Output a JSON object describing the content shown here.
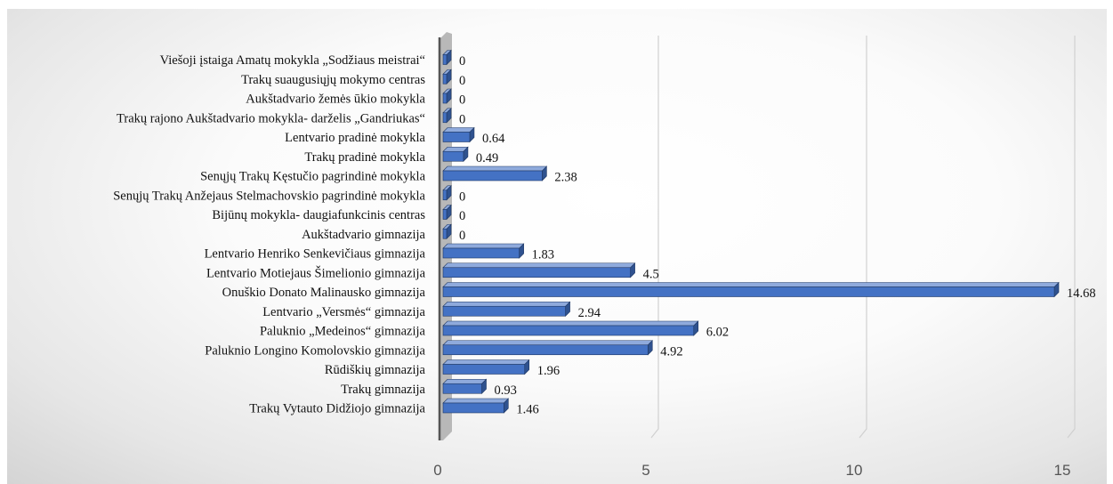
{
  "chart_data": {
    "type": "bar",
    "orientation": "horizontal",
    "categories": [
      "Viešoji įstaiga Amatų mokykla „Sodžiaus meistrai“",
      "Trakų suaugusiųjų mokymo centras",
      "Aukštadvario žemės ūkio mokykla",
      "Trakų rajono Aukštadvario mokykla- darželis „Gandriukas“",
      "Lentvario pradinė mokykla",
      "Trakų pradinė mokykla",
      "Senųjų Trakų Kęstučio pagrindinė mokykla",
      "Senųjų Trakų Anžejaus Stelmachovskio pagrindinė mokykla",
      "Bijūnų mokykla- daugiafunkcinis centras",
      "Aukštadvario gimnazija",
      "Lentvario Henriko Senkevičiaus gimnazija",
      "Lentvario Motiejaus Šimelionio gimnazija",
      "Onuškio Donato Malinausko gimnazija",
      "Lentvario „Versmės“ gimnazija",
      "Paluknio „Medeinos“ gimnazija",
      "Paluknio Longino Komolovskio gimnazija",
      "Rūdiškių gimnazija",
      "Trakų gimnazija",
      "Trakų Vytauto Didžiojo gimnazija"
    ],
    "values": [
      0,
      0,
      0,
      0,
      0.64,
      0.49,
      2.38,
      0,
      0,
      0,
      1.83,
      4.5,
      14.68,
      2.94,
      6.02,
      4.92,
      1.96,
      0.93,
      1.46
    ],
    "value_labels": [
      "0",
      "0",
      "0",
      "0",
      "0.64",
      "0.49",
      "2.38",
      "0",
      "0",
      "0",
      "1.83",
      "4.5",
      "14.68",
      "2.94",
      "6.02",
      "4.92",
      "1.96",
      "0.93",
      "1.46"
    ],
    "xlim": [
      0,
      15
    ],
    "xticks": [
      "0",
      "5",
      "10",
      "15"
    ],
    "title": "",
    "xlabel": "",
    "ylabel": "",
    "grid": true,
    "legend": "none",
    "style": "3d-bar",
    "colors": {
      "bar_front": "#4472C4",
      "bar_top": "#8FAADC",
      "bar_side": "#2F528F",
      "bar_outline": "#1F3864",
      "grid": "#d0d0d0",
      "wall": "#7f7f7f"
    }
  }
}
